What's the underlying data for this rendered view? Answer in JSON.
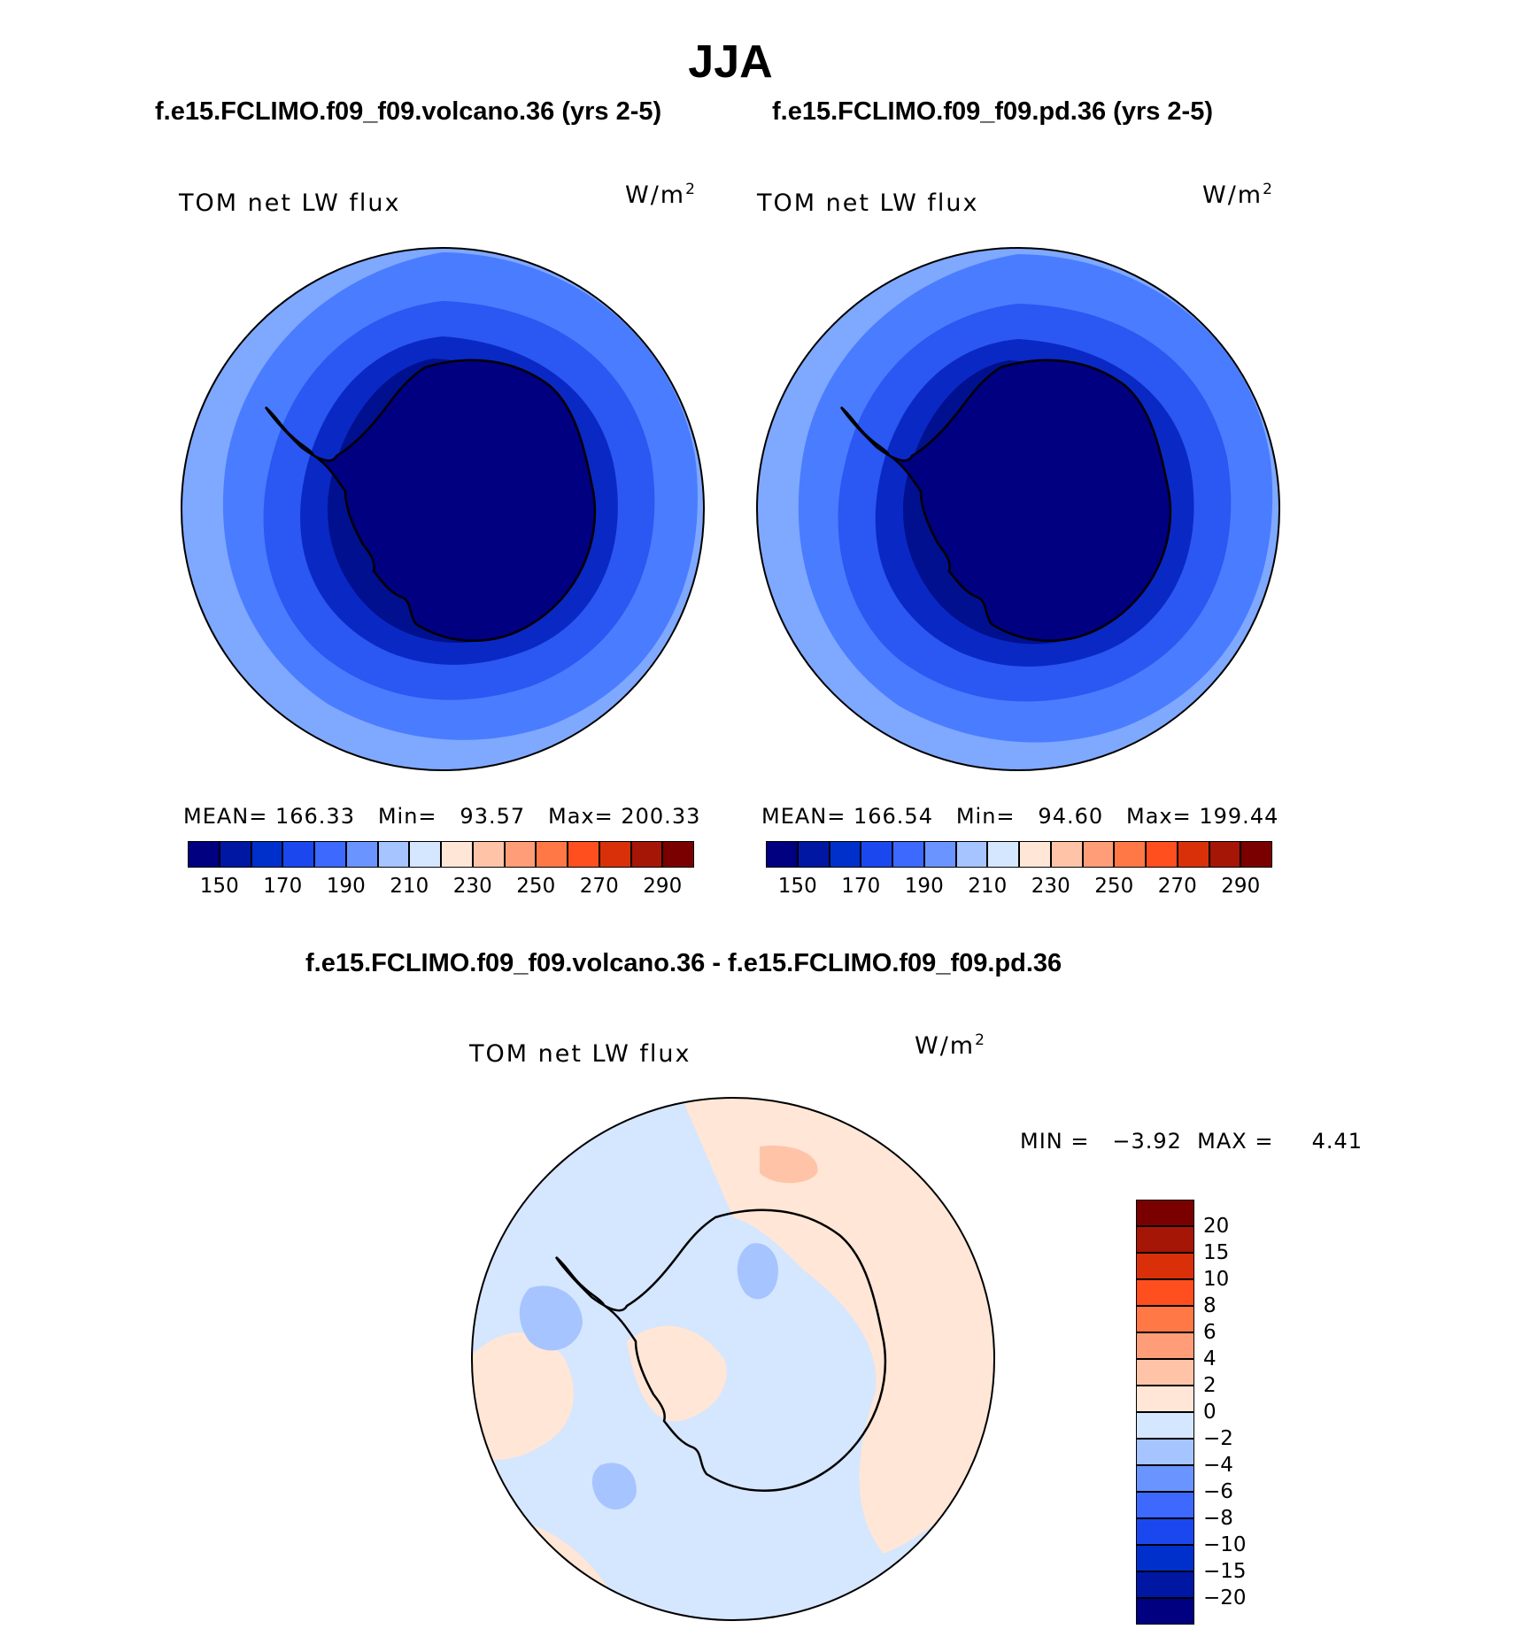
{
  "figure": {
    "title": "JJA",
    "diff_title": "f.e15.FCLIMO.f09_f09.volcano.36 - f.e15.FCLIMO.f09_f09.pd.36"
  },
  "panels": [
    {
      "case": "f.e15.FCLIMO.f09_f09.volcano.36 (yrs 2-5)",
      "variable": "TOM net LW flux",
      "units_base": "W/m",
      "units_exp": "2",
      "stats": "MEAN= 166.33   Min=   93.57   Max= 200.33"
    },
    {
      "case": "f.e15.FCLIMO.f09_f09.pd.36 (yrs 2-5)",
      "variable": "TOM net LW flux",
      "units_base": "W/m",
      "units_exp": "2",
      "stats": "MEAN= 166.54   Min=   94.60   Max= 199.44"
    }
  ],
  "diff_panel": {
    "variable": "TOM net LW flux",
    "units_base": "W/m",
    "units_exp": "2",
    "stats": "MIN =   −3.92  MAX =     4.41"
  },
  "colorbar_main": {
    "colors": [
      "#000080",
      "#0017a3",
      "#0030cc",
      "#1a48ee",
      "#3d69ff",
      "#6a94ff",
      "#a6c4ff",
      "#d5e6ff",
      "#ffe6d6",
      "#ffc4a8",
      "#ff9d78",
      "#ff7846",
      "#ff4f1e",
      "#d9300a",
      "#a61606",
      "#7a0000"
    ],
    "tick_labels": [
      "150",
      "170",
      "190",
      "210",
      "230",
      "250",
      "270",
      "290"
    ]
  },
  "colorbar_diff": {
    "colors": [
      "#000080",
      "#0017a3",
      "#0030cc",
      "#1a48ee",
      "#3d69ff",
      "#6a94ff",
      "#a6c4ff",
      "#d5e6ff",
      "#ffe6d6",
      "#ffc4a8",
      "#ff9d78",
      "#ff7846",
      "#ff4f1e",
      "#d9300a",
      "#a61606",
      "#7a0000"
    ],
    "tick_labels": [
      "−20",
      "−15",
      "−10",
      "−8",
      "−6",
      "−4",
      "−2",
      "0",
      "2",
      "4",
      "6",
      "8",
      "10",
      "15",
      "20"
    ]
  }
}
